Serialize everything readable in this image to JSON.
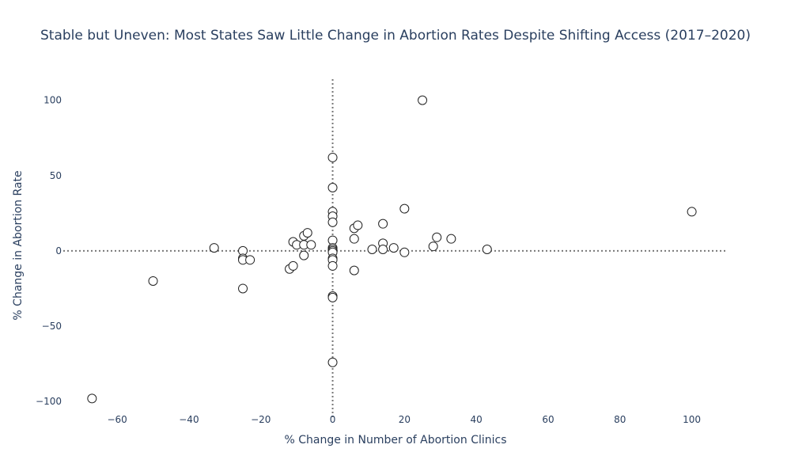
{
  "chart_data": {
    "type": "scatter",
    "title": "Stable but Uneven: Most States Saw Little Change in Abortion Rates Despite Shifting Access (2017–2020)",
    "xlabel": "% Change in Number of Abortion Clinics",
    "ylabel": "% Change in Abortion Rate",
    "xlim": [
      -75,
      110
    ],
    "ylim": [
      -112,
      114
    ],
    "xticks": [
      -60,
      -40,
      -20,
      0,
      20,
      40,
      60,
      80,
      100
    ],
    "yticks": [
      -100,
      -50,
      0,
      50,
      100
    ],
    "grid": false,
    "reference_lines": {
      "x": 0,
      "y": 0,
      "style": "dotted"
    },
    "marker": {
      "shape": "open-circle",
      "fill": "#ffffff",
      "stroke": "#222222"
    },
    "colors": {
      "text": "#2a3f5f",
      "reference_line": "#777777"
    },
    "points": [
      {
        "x": -67,
        "y": -98
      },
      {
        "x": -50,
        "y": -20
      },
      {
        "x": -33,
        "y": 2
      },
      {
        "x": -25,
        "y": 0
      },
      {
        "x": -25,
        "y": -5
      },
      {
        "x": -25,
        "y": -6
      },
      {
        "x": -25,
        "y": -25
      },
      {
        "x": -23,
        "y": -6
      },
      {
        "x": -12,
        "y": -12
      },
      {
        "x": -11,
        "y": -10
      },
      {
        "x": -11,
        "y": 6
      },
      {
        "x": -10,
        "y": 4
      },
      {
        "x": -8,
        "y": 10
      },
      {
        "x": -8,
        "y": 4
      },
      {
        "x": -8,
        "y": -3
      },
      {
        "x": -7,
        "y": 12
      },
      {
        "x": -6,
        "y": 4
      },
      {
        "x": 0,
        "y": 62
      },
      {
        "x": 0,
        "y": 42
      },
      {
        "x": 0,
        "y": 26
      },
      {
        "x": 0,
        "y": 23
      },
      {
        "x": 0,
        "y": 19
      },
      {
        "x": 0,
        "y": 7
      },
      {
        "x": 0,
        "y": 2
      },
      {
        "x": 0,
        "y": 1
      },
      {
        "x": 0,
        "y": 0
      },
      {
        "x": 0,
        "y": -1
      },
      {
        "x": 0,
        "y": -5
      },
      {
        "x": 0,
        "y": -6
      },
      {
        "x": 0,
        "y": -10
      },
      {
        "x": 0,
        "y": -30
      },
      {
        "x": 0,
        "y": -31
      },
      {
        "x": 0,
        "y": -74
      },
      {
        "x": 6,
        "y": 15
      },
      {
        "x": 6,
        "y": 8
      },
      {
        "x": 6,
        "y": -13
      },
      {
        "x": 7,
        "y": 17
      },
      {
        "x": 11,
        "y": 1
      },
      {
        "x": 14,
        "y": 18
      },
      {
        "x": 14,
        "y": 5
      },
      {
        "x": 14,
        "y": 1
      },
      {
        "x": 17,
        "y": 2
      },
      {
        "x": 20,
        "y": 28
      },
      {
        "x": 20,
        "y": -1
      },
      {
        "x": 25,
        "y": 100
      },
      {
        "x": 28,
        "y": 3
      },
      {
        "x": 29,
        "y": 9
      },
      {
        "x": 33,
        "y": 8
      },
      {
        "x": 43,
        "y": 1
      },
      {
        "x": 100,
        "y": 26
      }
    ]
  }
}
